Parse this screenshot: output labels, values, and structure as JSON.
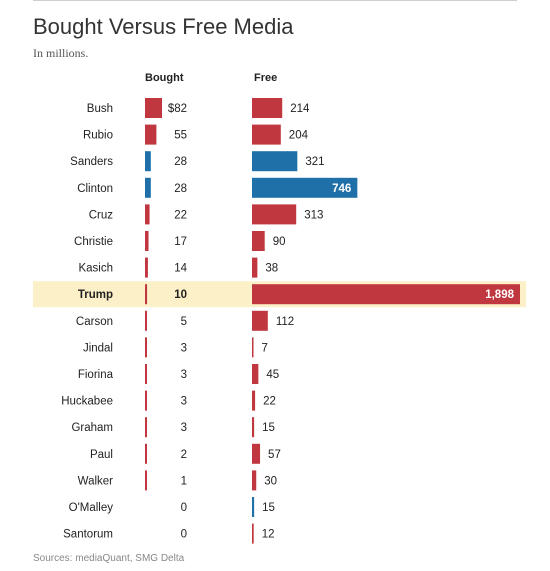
{
  "chart_data": {
    "type": "bar",
    "title": "Bought Versus Free Media",
    "subtitle": "In millions.",
    "source": "Sources: mediaQuant, SMG Delta",
    "columns": [
      "Bought",
      "Free"
    ],
    "highlight": "Trump",
    "colors": {
      "republican": "#c0373f",
      "democrat": "#1f6fa8",
      "highlight_band": "#fbf0c8"
    },
    "categories": [
      "Bush",
      "Rubio",
      "Sanders",
      "Clinton",
      "Cruz",
      "Christie",
      "Kasich",
      "Trump",
      "Carson",
      "Jindal",
      "Fiorina",
      "Huckabee",
      "Graham",
      "Paul",
      "Walker",
      "O'Malley",
      "Santorum"
    ],
    "party": [
      "R",
      "R",
      "D",
      "D",
      "R",
      "R",
      "R",
      "R",
      "R",
      "R",
      "R",
      "R",
      "R",
      "R",
      "R",
      "D",
      "R"
    ],
    "series": [
      {
        "name": "Bought",
        "values": [
          82,
          55,
          28,
          28,
          22,
          17,
          14,
          10,
          5,
          3,
          3,
          3,
          3,
          2,
          1,
          0,
          0
        ],
        "labels": [
          "$82",
          "55",
          "28",
          "28",
          "22",
          "17",
          "14",
          "10",
          "5",
          "3",
          "3",
          "3",
          "3",
          "2",
          "1",
          "0",
          "0"
        ]
      },
      {
        "name": "Free",
        "values": [
          214,
          204,
          321,
          746,
          313,
          90,
          38,
          1898,
          112,
          7,
          45,
          22,
          15,
          57,
          30,
          15,
          12
        ],
        "labels": [
          "214",
          "204",
          "321",
          "746",
          "313",
          "90",
          "38",
          "1,898",
          "112",
          "7",
          "45",
          "22",
          "15",
          "57",
          "30",
          "15",
          "12"
        ]
      }
    ]
  }
}
